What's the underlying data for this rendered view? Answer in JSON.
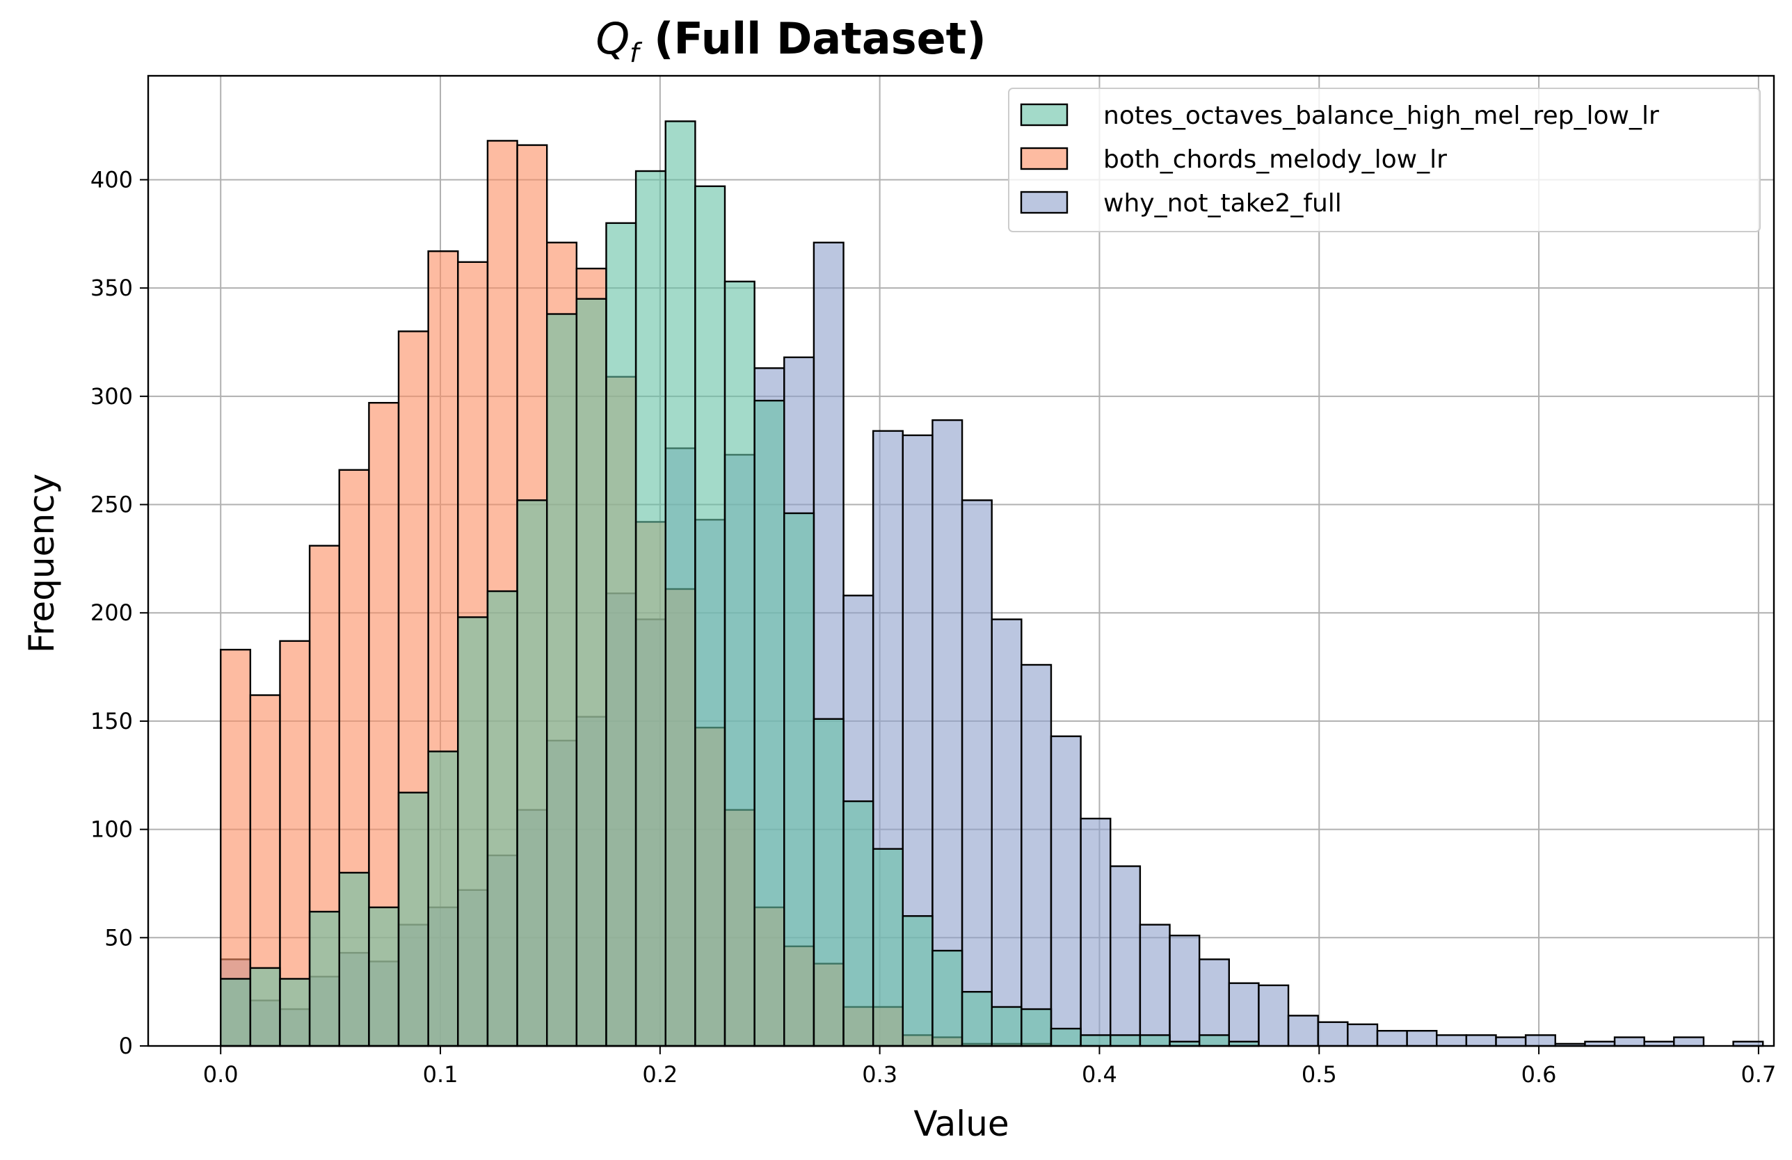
{
  "chart_data": {
    "type": "histogram",
    "title_main": "Q",
    "title_sub": "f",
    "title_rest": " (Full Dataset)",
    "xlabel": "Value",
    "ylabel": "Frequency",
    "xlim": [
      -0.033,
      0.707
    ],
    "ylim": [
      0,
      448
    ],
    "x_ticks": [
      0.0,
      0.1,
      0.2,
      0.3,
      0.4,
      0.5,
      0.6,
      0.7
    ],
    "x_tick_labels": [
      "0.0",
      "0.1",
      "0.2",
      "0.3",
      "0.4",
      "0.5",
      "0.6",
      "0.7"
    ],
    "y_ticks": [
      0,
      50,
      100,
      150,
      200,
      250,
      300,
      350,
      400
    ],
    "y_tick_labels": [
      "0",
      "50",
      "100",
      "150",
      "200",
      "250",
      "300",
      "350",
      "400"
    ],
    "grid": true,
    "legend_position": "top-right",
    "bin_start": 0.0,
    "bin_width": 0.0135,
    "series": [
      {
        "name": "notes_octaves_balance_high_mel_rep_low_lr",
        "color": "#66c2a5",
        "values": [
          31,
          36,
          31,
          62,
          80,
          64,
          117,
          136,
          198,
          210,
          252,
          338,
          345,
          380,
          404,
          427,
          397,
          353,
          298,
          246,
          151,
          113,
          91,
          60,
          44,
          25,
          18,
          17,
          8,
          5,
          5,
          5,
          2,
          5,
          2
        ]
      },
      {
        "name": "both_chords_melody_low_lr",
        "color": "#fc8d62",
        "values": [
          183,
          162,
          187,
          231,
          266,
          297,
          330,
          367,
          362,
          418,
          416,
          371,
          359,
          309,
          242,
          211,
          147,
          109,
          64,
          46,
          38,
          18,
          18,
          5,
          4,
          1,
          1,
          1,
          0,
          0
        ]
      },
      {
        "name": "why_not_take2_full",
        "color": "#8da0cb",
        "values": [
          40,
          21,
          17,
          32,
          43,
          39,
          56,
          64,
          72,
          88,
          109,
          141,
          152,
          209,
          197,
          276,
          243,
          273,
          313,
          318,
          371,
          208,
          284,
          282,
          289,
          252,
          197,
          176,
          143,
          105,
          83,
          56,
          51,
          40,
          29,
          28,
          14,
          11,
          10,
          7,
          7,
          5,
          5,
          4,
          5,
          1,
          2,
          4,
          2,
          4,
          0,
          2
        ]
      }
    ]
  }
}
